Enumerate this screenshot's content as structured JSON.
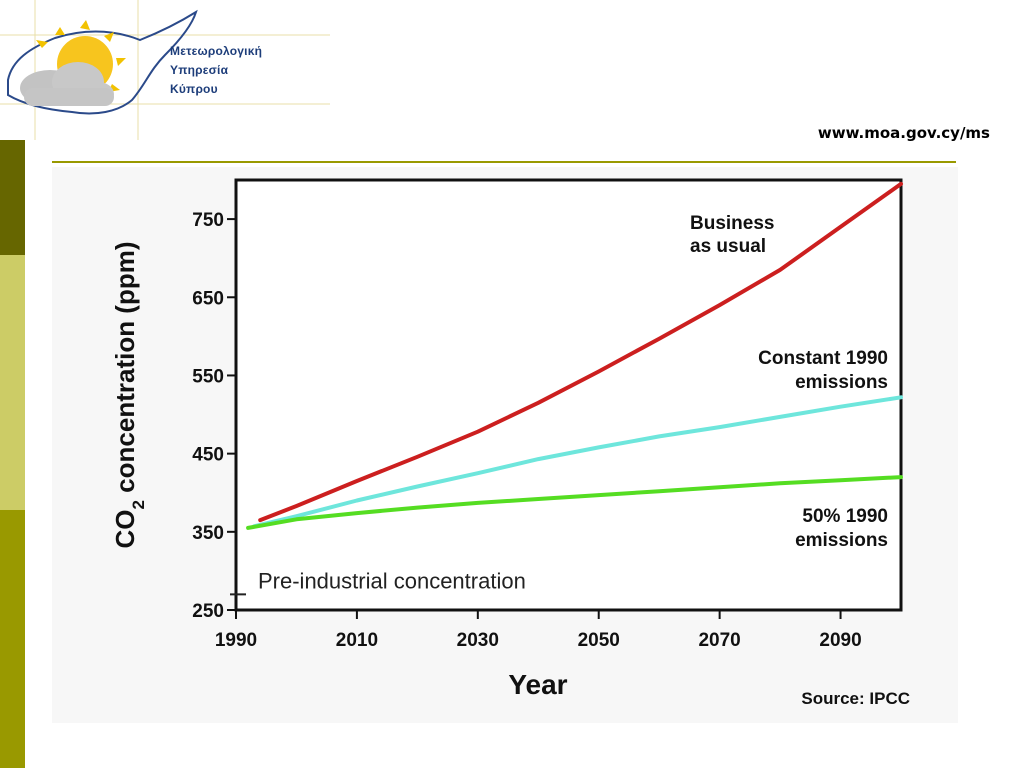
{
  "header": {
    "org_name_lines": [
      "Μετεωρολογική",
      "Υπηρεσία",
      "Κύπρου"
    ],
    "website": "www.moa.gov.cy/ms",
    "logo_icon": "sun-cloud-cyprus-icon"
  },
  "colors": {
    "accent_dark": "#666600",
    "accent_light": "#cccc66",
    "accent_mid": "#999900",
    "business_as_usual": "#cc1f1f",
    "constant_1990": "#6ee6dc",
    "fifty_percent_1990": "#55dd22"
  },
  "chart_data": {
    "type": "line",
    "title": "",
    "xlabel": "Year",
    "ylabel": "CO2 concentration (ppm)",
    "ylabel_parts": {
      "pre": "CO",
      "sub": "2",
      "post": " concentration (ppm)"
    },
    "xlim": [
      1990,
      2100
    ],
    "ylim": [
      250,
      800
    ],
    "x_ticks": [
      1990,
      2010,
      2030,
      2050,
      2070,
      2090
    ],
    "y_ticks": [
      250,
      350,
      450,
      550,
      650,
      750
    ],
    "grid": false,
    "series": [
      {
        "name": "Business as usual",
        "label_lines": [
          "Business",
          "as usual"
        ],
        "x": [
          1994,
          2000,
          2010,
          2020,
          2030,
          2040,
          2050,
          2060,
          2070,
          2080,
          2090,
          2100
        ],
        "values": [
          365,
          383,
          415,
          446,
          478,
          515,
          555,
          597,
          640,
          685,
          740,
          795
        ]
      },
      {
        "name": "Constant 1990 emissions",
        "label_lines": [
          "Constant 1990",
          "emissions"
        ],
        "x": [
          1993,
          2000,
          2010,
          2020,
          2030,
          2040,
          2050,
          2060,
          2070,
          2080,
          2090,
          2100
        ],
        "values": [
          357,
          370,
          390,
          408,
          425,
          443,
          458,
          472,
          484,
          497,
          510,
          522
        ]
      },
      {
        "name": "50% 1990 emissions",
        "label_lines": [
          "50% 1990",
          "emissions"
        ],
        "x": [
          1992,
          2000,
          2010,
          2020,
          2030,
          2040,
          2050,
          2060,
          2070,
          2080,
          2090,
          2100
        ],
        "values": [
          355,
          366,
          374,
          381,
          387,
          392,
          397,
          402,
          407,
          412,
          416,
          420
        ]
      }
    ],
    "reference": {
      "label": "Pre-industrial concentration",
      "value": 270
    },
    "source": "Source: IPCC"
  }
}
